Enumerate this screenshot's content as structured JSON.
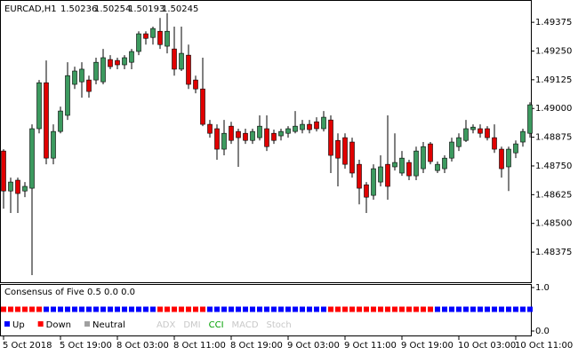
{
  "chart_data": [
    {
      "type": "candlestick",
      "symbol": "EURCAD,H1",
      "header_values": [
        1.50236,
        1.50254,
        1.50193,
        1.50245
      ],
      "up_color": "#3c9a5f",
      "down_color": "#e00000",
      "categories": [
        "5 Oct 2018",
        null,
        null,
        null,
        null,
        null,
        null,
        null,
        "5 Oct 19:00",
        null,
        null,
        null,
        null,
        null,
        null,
        null,
        "8 Oct 03:00",
        null,
        null,
        null,
        null,
        null,
        null,
        null,
        "8 Oct 11:00",
        null,
        null,
        null,
        null,
        null,
        null,
        null,
        "8 Oct 19:00",
        null,
        null,
        null,
        null,
        null,
        null,
        null,
        "9 Oct 03:00",
        null,
        null,
        null,
        null,
        null,
        null,
        null,
        "9 Oct 11:00",
        null,
        null,
        null,
        null,
        null,
        null,
        null,
        "9 Oct 19:00",
        null,
        null,
        null,
        null,
        null,
        null,
        null,
        "10 Oct 03:00",
        null,
        null,
        null,
        null,
        null,
        null,
        null,
        "10 Oct 11:00",
        null,
        null
      ],
      "open": [
        1.48815,
        1.48641,
        1.48688,
        1.48641,
        1.48653,
        1.48912,
        1.49112,
        1.48784,
        1.489,
        1.4897,
        1.49105,
        1.49116,
        1.49124,
        1.49124,
        1.49116,
        1.49213,
        1.49209,
        1.4919,
        1.49201,
        1.49248,
        1.49325,
        1.49309,
        1.49336,
        1.49271,
        1.49259,
        1.49171,
        1.49232,
        1.49124,
        1.49085,
        1.48931,
        1.48912,
        1.48823,
        1.48923,
        1.489,
        1.48892,
        1.48861,
        1.48873,
        1.48912,
        1.48892,
        1.48881,
        1.48892,
        1.489,
        1.48908,
        1.48931,
        1.48942,
        1.48912,
        1.4895,
        1.48861,
        1.48873,
        1.48854,
        1.48757,
        1.48668,
        1.48622,
        1.4868,
        1.48757,
        1.48746,
        1.48719,
        1.48765,
        1.48707,
        1.48738,
        1.48846,
        1.4873,
        1.48738,
        1.48784,
        1.48834,
        1.48861,
        1.48908,
        1.48912,
        1.48912,
        1.48873,
        1.48823,
        1.48746,
        1.48807,
        1.48854,
        1.48892
      ],
      "high": [
        1.48823,
        1.48699,
        1.48699,
        1.4868,
        1.48931,
        1.49124,
        1.49209,
        1.48931,
        1.49008,
        1.49201,
        1.49182,
        1.49201,
        1.49143,
        1.49221,
        1.49259,
        1.49232,
        1.49221,
        1.49232,
        1.49259,
        1.49336,
        1.49336,
        1.49356,
        1.49394,
        1.49414,
        1.49356,
        1.49356,
        1.49278,
        1.49143,
        1.49221,
        1.4895,
        1.48931,
        1.4895,
        1.48942,
        1.48912,
        1.48912,
        1.48912,
        1.4897,
        1.4897,
        1.48908,
        1.48912,
        1.48923,
        1.48989,
        1.4895,
        1.4895,
        1.48962,
        1.48989,
        1.4897,
        1.48892,
        1.48892,
        1.48873,
        1.48777,
        1.4868,
        1.48757,
        1.48796,
        1.4897,
        1.48892,
        1.48815,
        1.48777,
        1.48834,
        1.48854,
        1.48854,
        1.48769,
        1.48796,
        1.48873,
        1.48892,
        1.4895,
        1.48931,
        1.48931,
        1.48923,
        1.48931,
        1.48834,
        1.48834,
        1.48861,
        1.48912,
        1.49027
      ],
      "low": [
        1.48564,
        1.48545,
        1.48545,
        1.48614,
        1.48275,
        1.48892,
        1.48757,
        1.48757,
        1.48892,
        1.4895,
        1.49085,
        1.49047,
        1.49047,
        1.49105,
        1.49105,
        1.49171,
        1.49171,
        1.49171,
        1.49171,
        1.49232,
        1.49278,
        1.49278,
        1.49259,
        1.4924,
        1.49143,
        1.49163,
        1.49085,
        1.49066,
        1.48923,
        1.48873,
        1.48777,
        1.48796,
        1.48846,
        1.48746,
        1.48846,
        1.48846,
        1.48861,
        1.48815,
        1.48846,
        1.48861,
        1.48873,
        1.48892,
        1.48892,
        1.48892,
        1.489,
        1.489,
        1.48719,
        1.48661,
        1.48738,
        1.48699,
        1.48583,
        1.48545,
        1.48603,
        1.48661,
        1.48603,
        1.4873,
        1.48707,
        1.48688,
        1.48688,
        1.48719,
        1.48757,
        1.48719,
        1.48719,
        1.48769,
        1.48815,
        1.48854,
        1.48892,
        1.48873,
        1.48861,
        1.48807,
        1.48699,
        1.48641,
        1.48784,
        1.48834,
        1.48873
      ],
      "close": [
        1.48641,
        1.4868,
        1.4863,
        1.48661,
        1.48912,
        1.49112,
        1.48784,
        1.489,
        1.48989,
        1.49143,
        1.49163,
        1.49171,
        1.49074,
        1.49201,
        1.49221,
        1.49182,
        1.4919,
        1.49221,
        1.49248,
        1.49325,
        1.49305,
        1.49348,
        1.49278,
        1.49336,
        1.49171,
        1.4924,
        1.49105,
        1.49085,
        1.48931,
        1.48892,
        1.48823,
        1.48892,
        1.48861,
        1.48873,
        1.48861,
        1.489,
        1.48923,
        1.48834,
        1.48861,
        1.489,
        1.48912,
        1.48923,
        1.48931,
        1.48908,
        1.48912,
        1.48962,
        1.48796,
        1.48784,
        1.48757,
        1.48719,
        1.48653,
        1.48614,
        1.48738,
        1.48746,
        1.48661,
        1.48765,
        1.48784,
        1.48707,
        1.48815,
        1.48834,
        1.48769,
        1.48757,
        1.48784,
        1.48854,
        1.48873,
        1.48912,
        1.48919,
        1.48892,
        1.48873,
        1.48823,
        1.48738,
        1.48823,
        1.48846,
        1.489,
        1.49016
      ],
      "ylim": [
        1.48244,
        1.49472
      ],
      "yticks": [
        {
          "value": 1.49375,
          "label": "1.49375"
        },
        {
          "value": 1.4925,
          "label": "1.49250"
        },
        {
          "value": 1.49125,
          "label": "1.49125"
        },
        {
          "value": 1.49,
          "label": "1.49000"
        },
        {
          "value": 1.48875,
          "label": "1.48875"
        },
        {
          "value": 1.4875,
          "label": "1.48750"
        },
        {
          "value": 1.48625,
          "label": "1.48625"
        },
        {
          "value": 1.485,
          "label": "1.48500"
        },
        {
          "value": 1.48375,
          "label": "1.48375"
        }
      ]
    },
    {
      "type": "signal",
      "title": "Consensus of Five 0.5 0.0 0.0",
      "ylim": [
        0,
        1
      ],
      "yticks": [
        {
          "value": 1,
          "label": "1.0"
        },
        {
          "value": 0,
          "label": "0.0"
        }
      ],
      "series": [
        {
          "name": "Up",
          "color": "#0000ff",
          "values": [
            null,
            null,
            null,
            null,
            null,
            null,
            0.5,
            0.5,
            0.5,
            0.5,
            0.5,
            0.5,
            0.5,
            0.5,
            0.5,
            0.5,
            0.5,
            0.5,
            0.5,
            0.5,
            0.5,
            0.5,
            null,
            null,
            null,
            null,
            null,
            null,
            null,
            0.5,
            0.5,
            0.5,
            0.5,
            0.5,
            0.5,
            0.5,
            0.5,
            0.5,
            0.5,
            0.5,
            0.5,
            0.5,
            0.5,
            0.5,
            0.5,
            0.5,
            null,
            null,
            null,
            null,
            null,
            null,
            null,
            null,
            null,
            null,
            null,
            null,
            null,
            null,
            null,
            0.5,
            0.5,
            0.5,
            0.5,
            0.5,
            0.5,
            0.5,
            0.5,
            0.5,
            0.5,
            0.5,
            0.5,
            0.5,
            0.5
          ]
        },
        {
          "name": "Down",
          "color": "#ff0000",
          "values": [
            0.5,
            0.5,
            0.5,
            0.5,
            0.5,
            0.5,
            null,
            null,
            null,
            null,
            null,
            null,
            null,
            null,
            null,
            null,
            null,
            null,
            null,
            null,
            null,
            null,
            0.5,
            0.5,
            0.5,
            0.5,
            0.5,
            0.5,
            0.5,
            null,
            null,
            null,
            null,
            null,
            null,
            null,
            null,
            null,
            null,
            null,
            null,
            null,
            null,
            null,
            null,
            null,
            0.5,
            0.5,
            0.5,
            0.5,
            0.5,
            0.5,
            0.5,
            0.5,
            0.5,
            0.5,
            0.5,
            0.5,
            0.5,
            0.5,
            0.5,
            null,
            null,
            null,
            null,
            null,
            null,
            null,
            null,
            null,
            null,
            null,
            null,
            null,
            null
          ]
        },
        {
          "name": "Neutral",
          "color": "#a0a0a0",
          "values": [
            null,
            null,
            null,
            null,
            null,
            null,
            null,
            null,
            null,
            null,
            null,
            null,
            null,
            null,
            null,
            null,
            null,
            null,
            null,
            null,
            null,
            null,
            null,
            null,
            null,
            null,
            null,
            null,
            null,
            null,
            null,
            null,
            null,
            null,
            null,
            null,
            null,
            null,
            null,
            null,
            null,
            null,
            null,
            null,
            null,
            null,
            null,
            null,
            null,
            null,
            null,
            null,
            null,
            null,
            null,
            null,
            null,
            null,
            null,
            null,
            null,
            null,
            null,
            null,
            null,
            null,
            null,
            null,
            null,
            null,
            null,
            null,
            null,
            null,
            null
          ]
        }
      ],
      "indicators": [
        {
          "name": "ADX",
          "color": "#c8c8c8"
        },
        {
          "name": "DMI",
          "color": "#c8c8c8"
        },
        {
          "name": "CCI",
          "color": "#00a000"
        },
        {
          "name": "MACD",
          "color": "#c8c8c8"
        },
        {
          "name": "Stoch",
          "color": "#c8c8c8"
        }
      ]
    }
  ]
}
